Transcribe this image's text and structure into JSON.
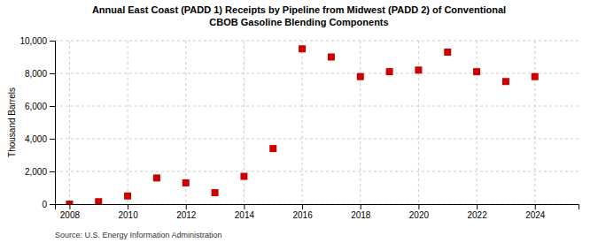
{
  "chart_data": {
    "type": "scatter",
    "title": "Annual East Coast (PADD 1) Receipts by Pipeline from Midwest (PADD 2) of Conventional\nCBOB Gasoline Blending Components",
    "ylabel": "Thousand Barrels",
    "annotations": [
      "Source: U.S. Energy Information Administration"
    ],
    "x": [
      2008,
      2009,
      2010,
      2011,
      2012,
      2013,
      2014,
      2015,
      2016,
      2017,
      2018,
      2019,
      2020,
      2021,
      2022,
      2023,
      2024
    ],
    "values": [
      0,
      150,
      500,
      1600,
      1300,
      700,
      1700,
      3400,
      9500,
      9000,
      7800,
      8100,
      8200,
      9300,
      8100,
      7500,
      7800
    ],
    "color": "#cc0000",
    "marker": "square",
    "xlim": [
      2007.5,
      2025.5
    ],
    "ylim": [
      0,
      10000
    ],
    "xticks": [
      2008,
      2010,
      2012,
      2014,
      2016,
      2018,
      2020,
      2022,
      2024
    ],
    "yticks": [
      0,
      {
        "value": 2000,
        "label": "2,000"
      },
      {
        "value": 4000,
        "label": "4,000"
      },
      {
        "value": 6000,
        "label": "6,000"
      },
      {
        "value": 8000,
        "label": "8,000"
      },
      {
        "value": 10000,
        "label": "10,000"
      }
    ],
    "grid": true
  }
}
